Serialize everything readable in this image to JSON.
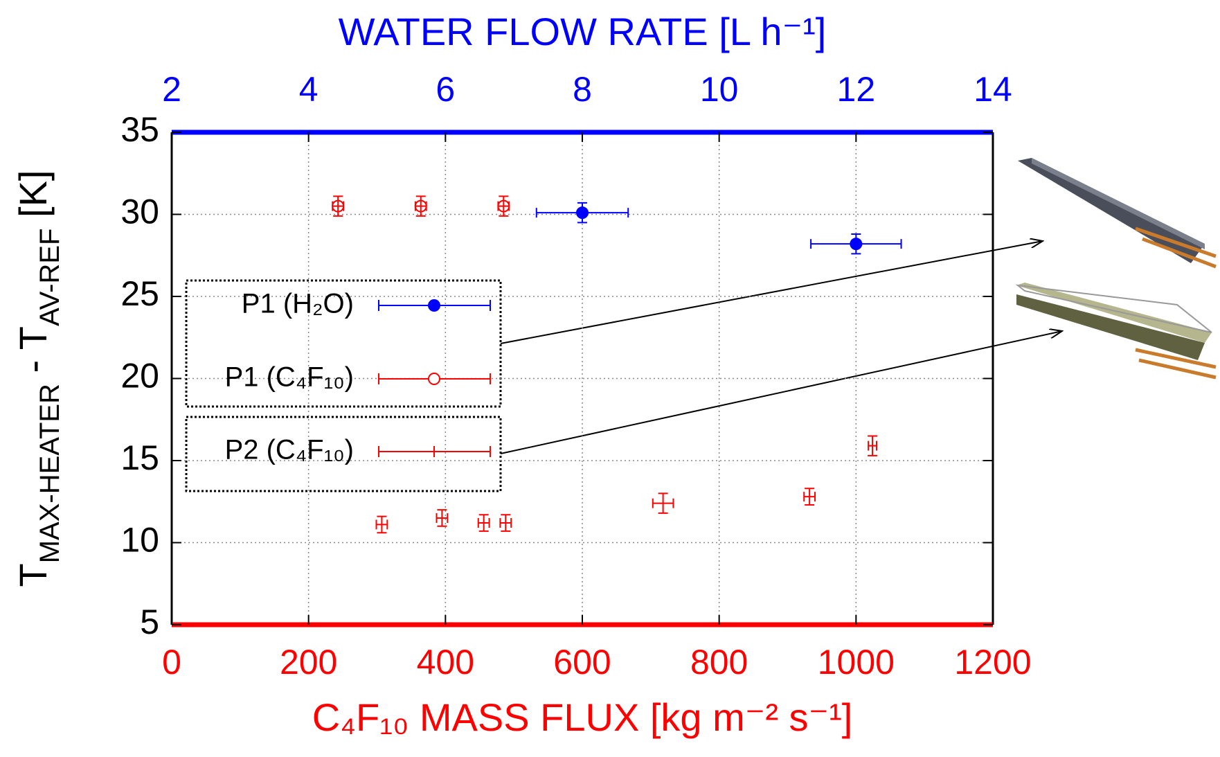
{
  "chart_data": {
    "type": "scatter",
    "x2_label": "WATER FLOW RATE [L h⁻¹]",
    "xlabel": "C₄F₁₀ MASS FLUX [kg m⁻² s⁻¹]",
    "ylabel": [
      "T",
      "MAX-HEATER",
      " - T",
      "AV-REF",
      " [K]"
    ],
    "xlim": [
      0,
      1200
    ],
    "xticks": [
      0,
      200,
      400,
      600,
      800,
      1000,
      1200
    ],
    "xcolor": "#ff0000",
    "x2lim": [
      2,
      14
    ],
    "x2ticks": [
      2,
      4,
      6,
      8,
      10,
      12,
      14
    ],
    "x2color": "#0000ff",
    "ylim": [
      5,
      35
    ],
    "yticks": [
      5,
      10,
      15,
      20,
      25,
      30,
      35
    ],
    "grid": true,
    "series": [
      {
        "name": "P1 (H₂O)",
        "color": "#0000ff",
        "marker": "filled-circle",
        "axis": "x2",
        "x": [
          8,
          12
        ],
        "values": [
          30.1,
          28.2
        ],
        "xerr": [
          0.67,
          0.66
        ],
        "yerr": [
          0.6,
          0.6
        ]
      },
      {
        "name": "P1 (C₄F₁₀)",
        "color": "#ff0000",
        "marker": "open-circle",
        "x": [
          243,
          364,
          485
        ],
        "values": [
          30.5,
          30.5,
          30.5
        ],
        "xerr": [
          8,
          8,
          8
        ],
        "yerr": [
          0.6,
          0.6,
          0.6
        ]
      },
      {
        "name": "P2 (C₄F₁₀)",
        "color": "#ff0000",
        "marker": "none",
        "x": [
          307,
          395,
          456,
          488,
          718,
          932,
          1024
        ],
        "values": [
          11.1,
          11.5,
          11.2,
          11.2,
          12.4,
          12.8,
          15.9
        ],
        "xerr": [
          8,
          8,
          8,
          8,
          15,
          8,
          6
        ],
        "yerr": [
          0.5,
          0.5,
          0.5,
          0.5,
          0.6,
          0.5,
          0.6
        ]
      }
    ]
  }
}
